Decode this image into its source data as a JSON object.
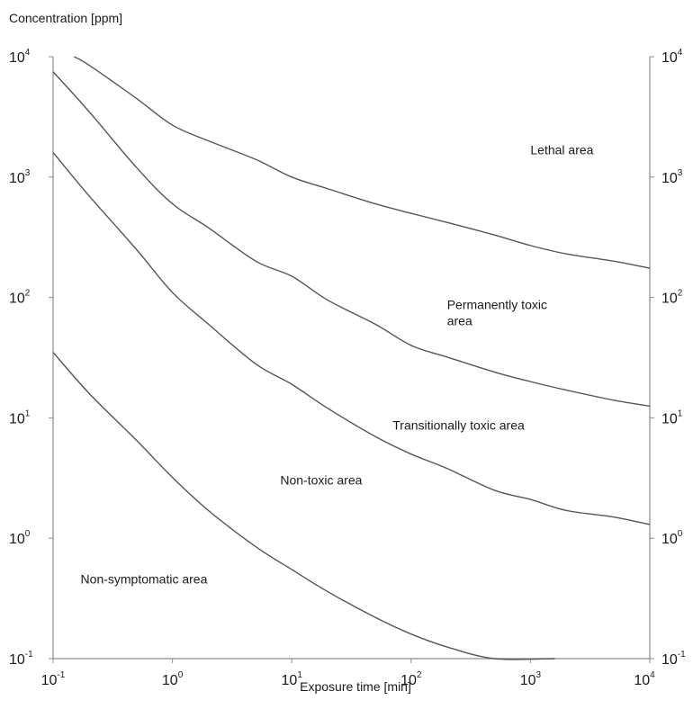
{
  "chart_data": {
    "type": "line",
    "title": "",
    "ylabel": "Concentration [ppm]",
    "xlabel": "Exposure time [min]",
    "xscale": "log",
    "yscale": "log",
    "xlim": [
      0.1,
      10000
    ],
    "ylim": [
      0.1,
      10000
    ],
    "grid": false,
    "legend": "none",
    "x_ticks": [
      {
        "value": 0.1,
        "base": "10",
        "exp": "-1"
      },
      {
        "value": 1,
        "base": "10",
        "exp": "0"
      },
      {
        "value": 10,
        "base": "10",
        "exp": "1"
      },
      {
        "value": 100,
        "base": "10",
        "exp": "2"
      },
      {
        "value": 1000,
        "base": "10",
        "exp": "3"
      },
      {
        "value": 10000,
        "base": "10",
        "exp": "4"
      }
    ],
    "y_ticks": [
      {
        "value": 0.1,
        "base": "10",
        "exp": "-1"
      },
      {
        "value": 1,
        "base": "10",
        "exp": "0"
      },
      {
        "value": 10,
        "base": "10",
        "exp": "1"
      },
      {
        "value": 100,
        "base": "10",
        "exp": "2"
      },
      {
        "value": 1000,
        "base": "10",
        "exp": "3"
      },
      {
        "value": 10000,
        "base": "10",
        "exp": "4"
      }
    ],
    "series": [
      {
        "points": [
          [
            0.1,
            35
          ],
          [
            0.2,
            16
          ],
          [
            0.5,
            6.5
          ],
          [
            1,
            3.2
          ],
          [
            2,
            1.7
          ],
          [
            5,
            0.85
          ],
          [
            10,
            0.55
          ],
          [
            20,
            0.36
          ],
          [
            50,
            0.22
          ],
          [
            100,
            0.16
          ],
          [
            200,
            0.125
          ],
          [
            500,
            0.1
          ],
          [
            1600,
            0.1
          ]
        ]
      },
      {
        "points": [
          [
            0.1,
            1600
          ],
          [
            0.2,
            700
          ],
          [
            0.5,
            250
          ],
          [
            1,
            110
          ],
          [
            2,
            60
          ],
          [
            5,
            28
          ],
          [
            10,
            19
          ],
          [
            20,
            12
          ],
          [
            50,
            7
          ],
          [
            100,
            5
          ],
          [
            200,
            3.8
          ],
          [
            500,
            2.5
          ],
          [
            1000,
            2.1
          ],
          [
            2000,
            1.7
          ],
          [
            5000,
            1.5
          ],
          [
            10000,
            1.3
          ]
        ]
      },
      {
        "points": [
          [
            0.1,
            7500
          ],
          [
            0.2,
            3500
          ],
          [
            0.5,
            1200
          ],
          [
            1,
            600
          ],
          [
            2,
            380
          ],
          [
            5,
            200
          ],
          [
            10,
            150
          ],
          [
            20,
            95
          ],
          [
            50,
            60
          ],
          [
            100,
            40
          ],
          [
            200,
            32
          ],
          [
            500,
            24
          ],
          [
            1000,
            20
          ],
          [
            2000,
            17
          ],
          [
            5000,
            14
          ],
          [
            10000,
            12.5
          ]
        ]
      },
      {
        "points": [
          [
            0.15,
            10000
          ],
          [
            0.2,
            8500
          ],
          [
            0.5,
            4500
          ],
          [
            1,
            2700
          ],
          [
            2,
            2000
          ],
          [
            5,
            1400
          ],
          [
            10,
            1000
          ],
          [
            20,
            800
          ],
          [
            50,
            600
          ],
          [
            100,
            500
          ],
          [
            200,
            420
          ],
          [
            500,
            330
          ],
          [
            1000,
            270
          ],
          [
            2000,
            230
          ],
          [
            5000,
            200
          ],
          [
            10000,
            175
          ]
        ]
      }
    ],
    "annotations": [
      {
        "text": "Lethal area",
        "x": 1000,
        "y": 1550
      },
      {
        "lines": [
          "Permanently toxic",
          "area"
        ],
        "x": 200,
        "y": 80
      },
      {
        "text": "Transitionally toxic area",
        "x": 70,
        "y": 8
      },
      {
        "text": "Non-toxic area",
        "x": 8,
        "y": 2.8
      },
      {
        "text": "Non-symptomatic area",
        "x": 0.17,
        "y": 0.42
      }
    ]
  }
}
